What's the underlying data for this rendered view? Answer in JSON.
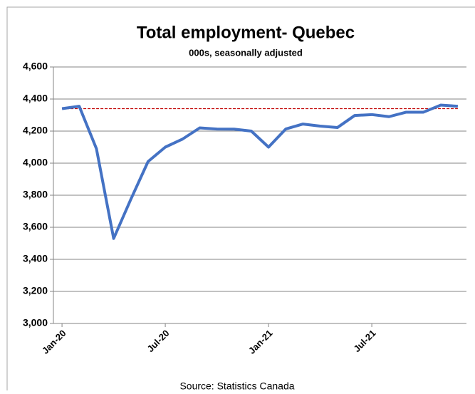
{
  "chart_data": {
    "type": "line",
    "title": "Total employment- Quebec",
    "subtitle": "000s, seasonally adjusted",
    "source": "Source: Statistics Canada",
    "categories": [
      "Jan-20",
      null,
      null,
      null,
      null,
      null,
      "Jul-20",
      null,
      null,
      null,
      null,
      null,
      "Jan-21",
      null,
      null,
      null,
      null,
      null,
      "Jul-21",
      null,
      null,
      null,
      null,
      null
    ],
    "series": [
      {
        "color": "#4472c4",
        "values": [
          4340,
          4355,
          4090,
          3530,
          3775,
          4010,
          4100,
          4150,
          4220,
          4213,
          4212,
          4200,
          4100,
          4213,
          4244,
          4231,
          4222,
          4297,
          4303,
          4290,
          4318,
          4318,
          4362,
          4355
        ]
      }
    ],
    "reference_line": {
      "value": 4340,
      "color": "#c00000",
      "dashed": true
    },
    "ylim": [
      3000,
      4600
    ],
    "yticks": [
      {
        "value": 3000,
        "label": "3,000"
      },
      {
        "value": 3200,
        "label": "3,200"
      },
      {
        "value": 3400,
        "label": "3,400"
      },
      {
        "value": 3600,
        "label": "3,600"
      },
      {
        "value": 3800,
        "label": "3,800"
      },
      {
        "value": 4000,
        "label": "4,000"
      },
      {
        "value": 4200,
        "label": "4,200"
      },
      {
        "value": 4400,
        "label": "4,400"
      },
      {
        "value": 4600,
        "label": "4,600"
      }
    ],
    "grid": true
  }
}
